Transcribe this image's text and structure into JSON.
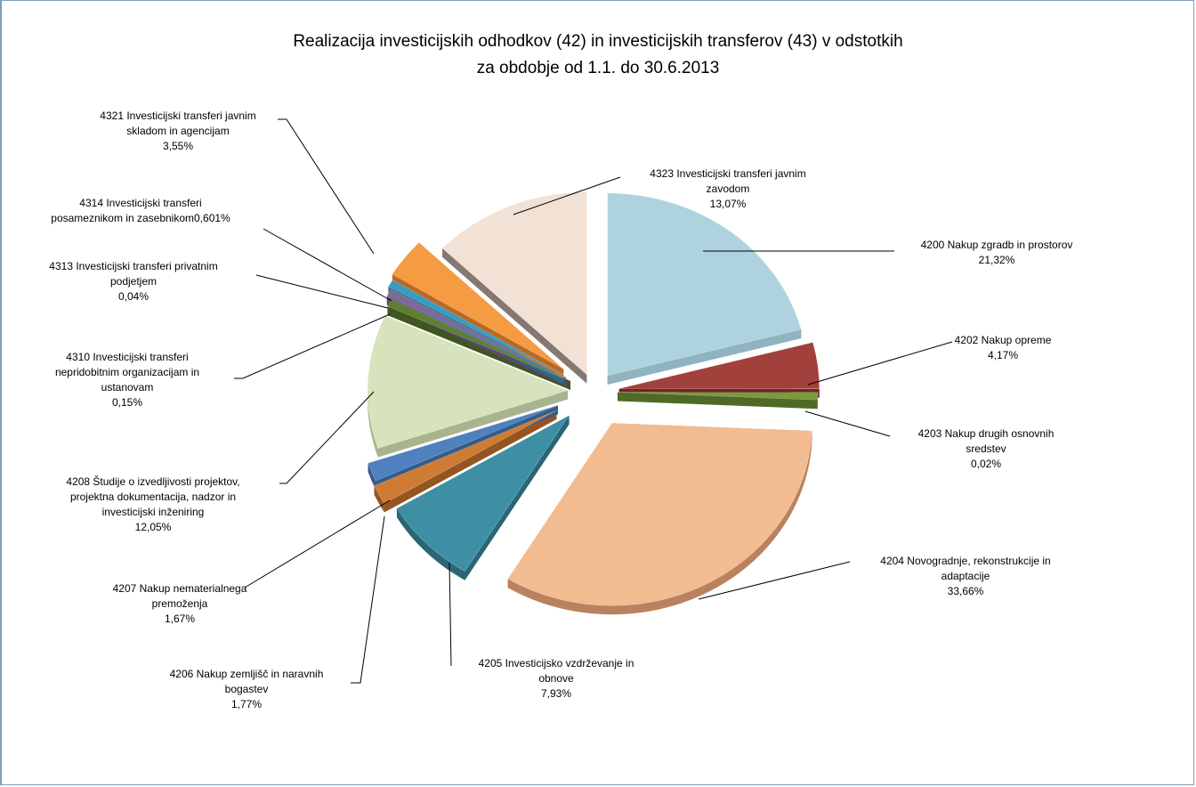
{
  "chart_data": {
    "type": "pie",
    "title": "Realizacija investicijskih odhodkov (42) in investicijskih transferov (43) v odstotkih",
    "subtitle": "za obdobje od 1.1. do 30.6.2013",
    "slices": [
      {
        "code": "4200",
        "lines": [
          "4200 Nakup zgradb in prostorov"
        ],
        "value_label": "21,32%",
        "value": 21.32,
        "color": "#aed3de",
        "side": "#8fb3bf"
      },
      {
        "code": "4202",
        "lines": [
          "4202 Nakup opreme"
        ],
        "value_label": "4,17%",
        "value": 4.17,
        "color": "#a2403b",
        "side": "#6e2724"
      },
      {
        "code": "4203",
        "lines": [
          "4203 Nakup drugih osnovnih",
          "sredstev"
        ],
        "value_label": "0,02%",
        "value": 0.02,
        "color": "#7a9a3c",
        "side": "#4f6a26"
      },
      {
        "code": "4204",
        "lines": [
          "4204 Novogradnje, rekonstrukcije in",
          "adaptacije"
        ],
        "value_label": "33,66%",
        "value": 33.66,
        "color": "#f2bb90",
        "side": "#b9825e"
      },
      {
        "code": "4205",
        "lines": [
          "4205 Investicijsko vzdrževanje in",
          "obnove"
        ],
        "value_label": "7,93%",
        "value": 7.93,
        "color": "#3e8fa3",
        "side": "#2a6575"
      },
      {
        "code": "4206",
        "lines": [
          "4206 Nakup zemljišč in naravnih",
          "bogastev"
        ],
        "value_label": "1,77%",
        "value": 1.77,
        "color": "#cf7b34",
        "side": "#955520"
      },
      {
        "code": "4207",
        "lines": [
          "4207 Nakup nematerialnega",
          "premoženja"
        ],
        "value_label": "1,67%",
        "value": 1.67,
        "color": "#4e81bd",
        "side": "#355c8a"
      },
      {
        "code": "4208",
        "lines": [
          "4208 Študije o izvedljivosti projektov,",
          "projektna dokumentacija, nadzor in",
          "investicijski inženiring"
        ],
        "value_label": "12,05%",
        "value": 12.05,
        "color": "#d6e3bc",
        "side": "#a7b48d"
      },
      {
        "code": "4310",
        "lines": [
          "4310 Investicijski transferi",
          "nepridobitnim organizacijam in",
          "ustanovam"
        ],
        "value_label": "0,15%",
        "value": 0.15,
        "color": "#5f7e2e",
        "side": "#3f5620"
      },
      {
        "code": "4313",
        "lines": [
          "4313 Investicijski transferi privatnim",
          "podjetjem"
        ],
        "value_label": "0,04%",
        "value": 0.04,
        "color": "#7c6a9a",
        "side": "#574a6e"
      },
      {
        "code": "4314",
        "lines": [
          "4314 Investicijski transferi",
          "posameznikom in zasebnikom0,601%"
        ],
        "value_label": "",
        "value": 0.601,
        "color": "#3c9bc0",
        "side": "#286d88"
      },
      {
        "code": "4321",
        "lines": [
          "4321 Investicijski transferi javnim",
          "skladom in agencijam"
        ],
        "value_label": "3,55%",
        "value": 3.55,
        "color": "#f59b42",
        "side": "#b86a22"
      },
      {
        "code": "4323",
        "lines": [
          "4323 Investicijski transferi javnim",
          "zavodom"
        ],
        "value_label": "13,07%",
        "value": 13.07,
        "color": "#f2e1d5",
        "side": "#857771"
      }
    ]
  }
}
